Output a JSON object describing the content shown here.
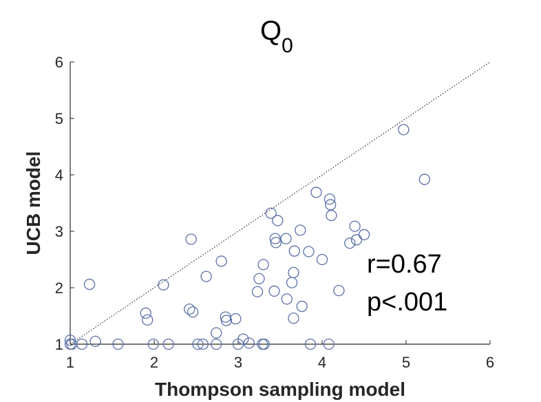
{
  "chart_data": {
    "type": "scatter",
    "title": "Q",
    "title_subscript": "0",
    "xlabel": "Thompson sampling model",
    "ylabel": "UCB model",
    "xlim": [
      1,
      6
    ],
    "ylim": [
      1,
      6
    ],
    "xticks": [
      "1",
      "2",
      "3",
      "4",
      "5",
      "6"
    ],
    "yticks": [
      "1",
      "2",
      "3",
      "4",
      "5",
      "6"
    ],
    "grid": false,
    "reference_line": "identity (dotted)",
    "marker": "open circle",
    "marker_color": "#5a6fa8",
    "annotations": [
      "r=0.67",
      "p<.001"
    ],
    "points": [
      {
        "x": 1.0,
        "y": 1.07
      },
      {
        "x": 1.0,
        "y": 1.0
      },
      {
        "x": 1.02,
        "y": 1.0
      },
      {
        "x": 1.14,
        "y": 1.0
      },
      {
        "x": 1.3,
        "y": 1.05
      },
      {
        "x": 1.57,
        "y": 1.0
      },
      {
        "x": 1.23,
        "y": 2.06
      },
      {
        "x": 1.9,
        "y": 1.55
      },
      {
        "x": 1.92,
        "y": 1.43
      },
      {
        "x": 1.99,
        "y": 1.0
      },
      {
        "x": 2.11,
        "y": 2.05
      },
      {
        "x": 2.17,
        "y": 1.0
      },
      {
        "x": 2.42,
        "y": 1.62
      },
      {
        "x": 2.46,
        "y": 1.57
      },
      {
        "x": 2.44,
        "y": 2.86
      },
      {
        "x": 2.52,
        "y": 1.0
      },
      {
        "x": 2.58,
        "y": 1.0
      },
      {
        "x": 2.62,
        "y": 2.2
      },
      {
        "x": 2.74,
        "y": 1.2
      },
      {
        "x": 2.74,
        "y": 1.0
      },
      {
        "x": 2.8,
        "y": 2.47
      },
      {
        "x": 2.85,
        "y": 1.48
      },
      {
        "x": 2.86,
        "y": 1.42
      },
      {
        "x": 2.97,
        "y": 1.45
      },
      {
        "x": 3.0,
        "y": 1.0
      },
      {
        "x": 3.06,
        "y": 1.09
      },
      {
        "x": 3.13,
        "y": 1.02
      },
      {
        "x": 3.23,
        "y": 1.93
      },
      {
        "x": 3.25,
        "y": 2.16
      },
      {
        "x": 3.29,
        "y": 1.0
      },
      {
        "x": 3.31,
        "y": 1.0
      },
      {
        "x": 3.3,
        "y": 2.41
      },
      {
        "x": 3.39,
        "y": 3.32
      },
      {
        "x": 3.43,
        "y": 1.94
      },
      {
        "x": 3.44,
        "y": 2.87
      },
      {
        "x": 3.45,
        "y": 2.8
      },
      {
        "x": 3.47,
        "y": 3.19
      },
      {
        "x": 3.57,
        "y": 2.87
      },
      {
        "x": 3.58,
        "y": 1.8
      },
      {
        "x": 3.64,
        "y": 2.09
      },
      {
        "x": 3.66,
        "y": 2.27
      },
      {
        "x": 3.66,
        "y": 1.46
      },
      {
        "x": 3.67,
        "y": 2.65
      },
      {
        "x": 3.74,
        "y": 3.02
      },
      {
        "x": 3.76,
        "y": 1.67
      },
      {
        "x": 3.84,
        "y": 2.64
      },
      {
        "x": 3.86,
        "y": 1.0
      },
      {
        "x": 3.93,
        "y": 3.69
      },
      {
        "x": 4.0,
        "y": 2.5
      },
      {
        "x": 4.08,
        "y": 1.0
      },
      {
        "x": 4.09,
        "y": 3.57
      },
      {
        "x": 4.1,
        "y": 3.47
      },
      {
        "x": 4.11,
        "y": 3.28
      },
      {
        "x": 4.2,
        "y": 1.95
      },
      {
        "x": 4.33,
        "y": 2.79
      },
      {
        "x": 4.39,
        "y": 3.09
      },
      {
        "x": 4.41,
        "y": 2.85
      },
      {
        "x": 4.5,
        "y": 2.94
      },
      {
        "x": 4.97,
        "y": 4.8
      },
      {
        "x": 5.22,
        "y": 3.92
      }
    ]
  }
}
